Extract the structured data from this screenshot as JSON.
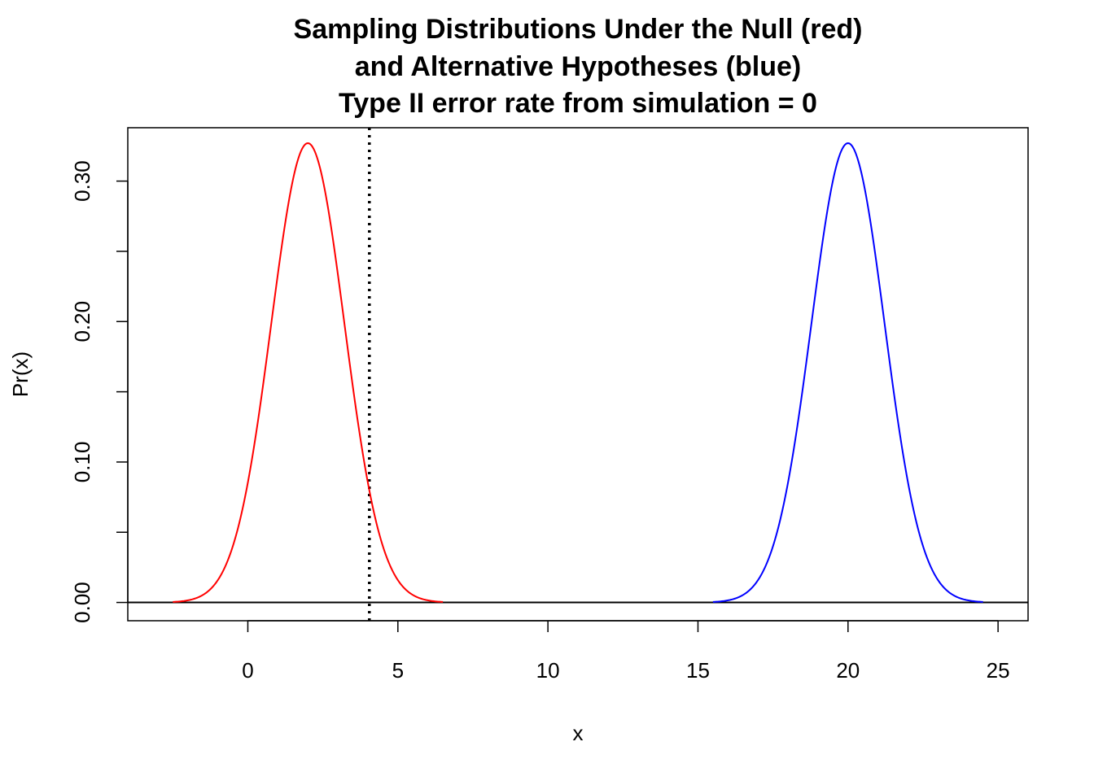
{
  "chart_data": {
    "type": "line",
    "title_lines": [
      "Sampling Distributions Under the Null (red)",
      "and Alternative Hypotheses (blue)",
      "Type II error rate from simulation = 0"
    ],
    "xlabel": "x",
    "ylabel": "Pr(x)",
    "xlim": [
      -4,
      26
    ],
    "ylim": [
      -0.013,
      0.338
    ],
    "x_ticks": [
      0,
      5,
      10,
      15,
      20,
      25
    ],
    "x_tick_labels": [
      "0",
      "5",
      "10",
      "15",
      "20",
      "25"
    ],
    "y_ticks": [
      0.0,
      0.05,
      0.1,
      0.15,
      0.2,
      0.25,
      0.3
    ],
    "y_tick_labels": [
      "0.00",
      "",
      "0.10",
      "",
      "0.20",
      "",
      "0.30"
    ],
    "series": [
      {
        "color": "#ff0000",
        "distribution": "normal",
        "mean": 2,
        "sd": 1.22,
        "x_range": [
          -2.5,
          6.5
        ]
      },
      {
        "color": "#0000ff",
        "distribution": "normal",
        "mean": 20,
        "sd": 1.22,
        "x_range": [
          15.5,
          24.5
        ]
      }
    ],
    "reference_lines": [
      {
        "kind": "horizontal",
        "y": 0,
        "style": "solid",
        "color": "#000000"
      },
      {
        "kind": "vertical",
        "x": 4.05,
        "style": "dotted",
        "color": "#000000"
      }
    ],
    "grid": false,
    "legend": "none"
  }
}
